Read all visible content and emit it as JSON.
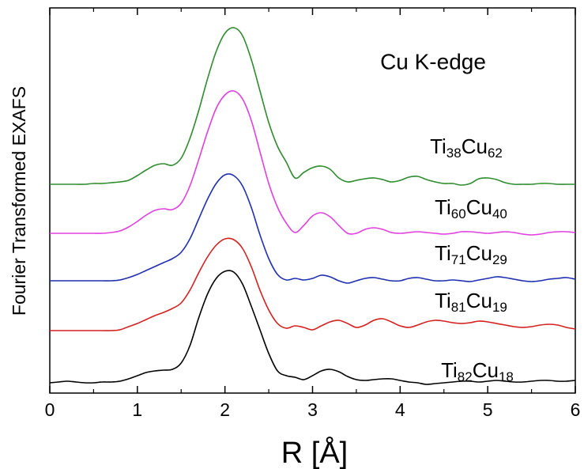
{
  "chart_data": {
    "type": "line",
    "annotation": "Cu K-edge",
    "x_label": "R [Å]",
    "y_label": "Fourier Transformed EXAFS",
    "x": [
      0,
      0.1,
      0.2,
      0.3,
      0.4,
      0.5,
      0.6,
      0.7,
      0.8,
      0.9,
      1,
      1.1,
      1.2,
      1.3,
      1.4,
      1.5,
      1.6,
      1.7,
      1.8,
      1.9,
      2,
      2.1,
      2.2,
      2.3,
      2.4,
      2.5,
      2.6,
      2.7,
      2.8,
      2.9,
      3,
      3.1,
      3.2,
      3.3,
      3.4,
      3.5,
      3.6,
      3.7,
      3.8,
      3.9,
      4,
      4.1,
      4.2,
      4.3,
      4.4,
      4.5,
      4.6,
      4.7,
      4.8,
      4.9,
      5,
      5.1,
      5.2,
      5.3,
      5.4,
      5.5,
      5.6,
      5.7,
      5.8,
      5.9,
      6
    ],
    "xlim": [
      0,
      6
    ],
    "xticks": [
      0,
      1,
      2,
      3,
      4,
      5,
      6
    ],
    "ylim": [
      0,
      487
    ],
    "series": [
      {
        "name": "Ti38Cu62",
        "color": "#2e8b2e",
        "values": [
          264,
          264,
          264,
          264,
          264,
          265,
          265,
          266,
          267,
          269,
          275,
          282,
          288,
          290,
          288,
          297,
          322,
          357,
          397,
          432,
          455,
          462,
          452,
          422,
          382,
          342,
          312,
          292,
          272,
          279,
          285,
          287,
          283,
          272,
          267,
          269,
          271,
          272,
          270,
          267,
          269,
          273,
          274,
          270,
          267,
          265,
          265,
          263,
          265,
          271,
          272,
          270,
          266,
          264,
          264,
          264,
          265,
          265,
          264,
          264,
          264
        ]
      },
      {
        "name": "Ti60Cu40",
        "color": "#e040e0",
        "values": [
          202,
          202,
          202,
          202,
          202,
          202,
          202,
          203,
          205,
          210,
          217,
          225,
          231,
          233,
          232,
          240,
          262,
          295,
          330,
          360,
          377,
          382,
          372,
          345,
          305,
          265,
          235,
          215,
          203,
          212,
          224,
          228,
          223,
          212,
          202,
          202,
          207,
          209,
          207,
          203,
          202,
          203,
          204,
          203,
          202,
          201,
          202,
          204,
          204,
          203,
          202,
          203,
          204,
          203,
          201,
          200,
          201,
          203,
          204,
          204,
          203
        ]
      },
      {
        "name": "Ti71Cu29",
        "color": "#1f2fb0",
        "values": [
          142,
          142,
          142,
          142,
          142,
          142,
          142,
          142,
          143,
          146,
          150,
          155,
          160,
          165,
          170,
          178,
          195,
          220,
          245,
          265,
          276,
          275,
          262,
          235,
          200,
          170,
          150,
          143,
          145,
          143,
          145,
          149,
          147,
          142,
          139,
          142,
          145,
          146,
          144,
          142,
          142,
          145,
          146,
          144,
          142,
          142,
          143,
          142,
          141,
          143,
          145,
          147,
          146,
          144,
          142,
          141,
          142,
          144,
          145,
          146,
          144
        ]
      },
      {
        "name": "Ti81Cu19",
        "color": "#d42020",
        "values": [
          79,
          79,
          79,
          79,
          79,
          79,
          79,
          79,
          80,
          84,
          88,
          93,
          98,
          102,
          107,
          114,
          130,
          152,
          172,
          187,
          195,
          194,
          183,
          160,
          130,
          105,
          88,
          82,
          85,
          83,
          80,
          85,
          90,
          92,
          88,
          83,
          86,
          92,
          94,
          90,
          85,
          83,
          86,
          90,
          92,
          91,
          89,
          88,
          89,
          91,
          90,
          88,
          86,
          84,
          83,
          84,
          86,
          87,
          86,
          83,
          81
        ]
      },
      {
        "name": "Ti82Cu18",
        "color": "#000000",
        "values": [
          13,
          14,
          15,
          14,
          13,
          13,
          14,
          14,
          15,
          18,
          22,
          26,
          28,
          29,
          30,
          38,
          60,
          95,
          125,
          145,
          154,
          153,
          138,
          110,
          80,
          50,
          28,
          22,
          20,
          17,
          22,
          28,
          30,
          27,
          21,
          17,
          16,
          17,
          18,
          18,
          16,
          14,
          13,
          11,
          12,
          13,
          14,
          15,
          15,
          14,
          15,
          16,
          15,
          14,
          14,
          15,
          16,
          16,
          15,
          15,
          16
        ]
      }
    ]
  }
}
